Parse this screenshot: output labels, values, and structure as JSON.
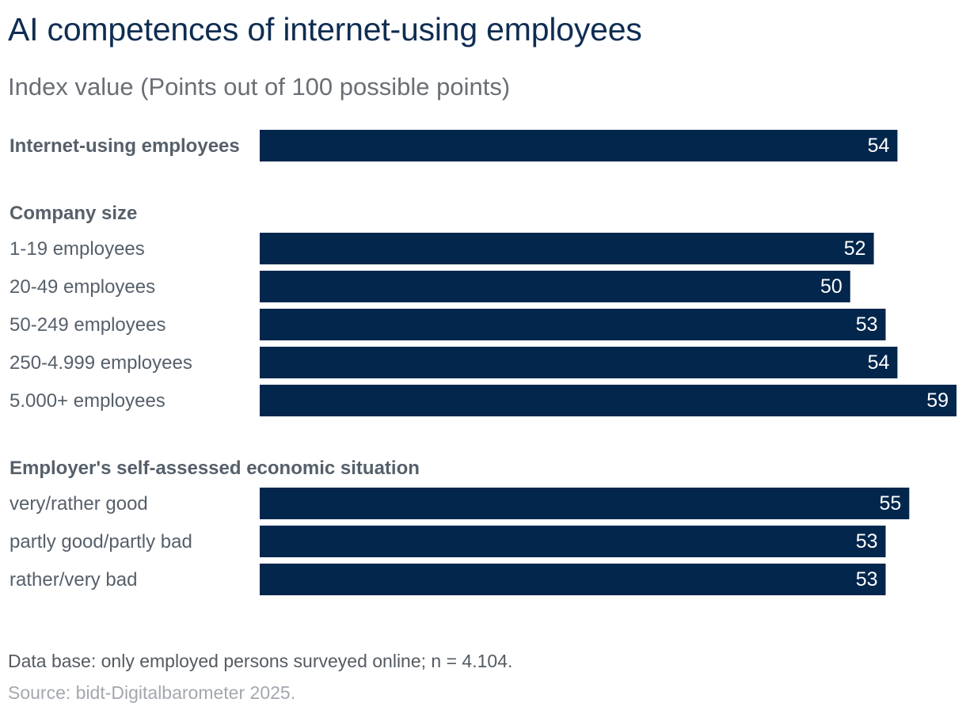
{
  "title": "AI competences of internet-using employees",
  "subtitle": "Index value (Points out of 100 possible points)",
  "footnote": "Data base: only employed persons surveyed online; n = 4.104.",
  "source": "Source: bidt-Digitalbarometer 2025.",
  "colors": {
    "bar": "#03264d",
    "bar_label": "#ffffff",
    "title": "#0f2d52",
    "subtitle": "#6a6f76",
    "category": "#56606a",
    "group_heading": "#56606a"
  },
  "chart_data": {
    "type": "bar",
    "orientation": "horizontal",
    "title": "AI competences of internet-using employees",
    "subtitle": "Index value (Points out of 100 possible points)",
    "xlim": [
      0,
      59
    ],
    "grid": false,
    "legend": "none",
    "groups": [
      {
        "heading": "",
        "items": [
          {
            "label": "Internet-using employees",
            "value": 54,
            "emphasis": true
          }
        ]
      },
      {
        "heading": "Company size",
        "items": [
          {
            "label": "1-19 employees",
            "value": 52
          },
          {
            "label": "20-49 employees",
            "value": 50
          },
          {
            "label": "50-249 employees",
            "value": 53
          },
          {
            "label": "250-4.999 employees",
            "value": 54
          },
          {
            "label": "5.000+ employees",
            "value": 59
          }
        ]
      },
      {
        "heading": "Employer's self-assessed economic situation",
        "items": [
          {
            "label": "very/rather good",
            "value": 55
          },
          {
            "label": "partly good/partly bad",
            "value": 53
          },
          {
            "label": "rather/very bad",
            "value": 53
          }
        ]
      }
    ]
  }
}
